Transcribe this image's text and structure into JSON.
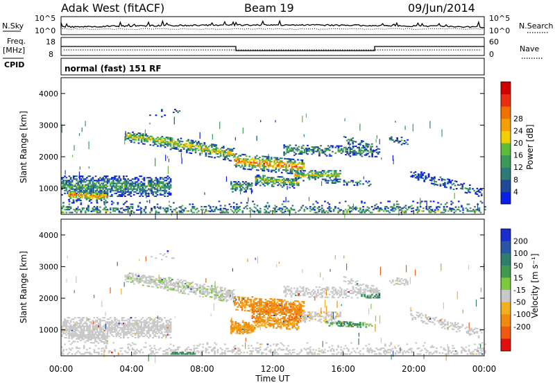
{
  "header": {
    "station": "Adak West (fitACF)",
    "beam": "Beam 19",
    "date": "09/Jun/2014"
  },
  "noise_panel": {
    "left_label": "N.Sky",
    "right_label": "N.Search",
    "left_ticks": [
      "10^5",
      "10^0"
    ],
    "right_ticks": [
      "10^5",
      "10^0"
    ]
  },
  "freq_panel": {
    "left_label_line1": "Freq.",
    "left_label_line2": "[MHz]",
    "left_label_line3": "CPID",
    "right_label": "Nave",
    "left_ticks": [
      18,
      8
    ],
    "right_ticks": [
      60,
      0
    ],
    "program": "normal (fast) 151 RF"
  },
  "chart_data": [
    {
      "type": "heatmap",
      "name": "power",
      "ylabel": "Slant Range [km]",
      "yticks": [
        1000,
        2000,
        3000,
        4000
      ],
      "ylim": [
        180,
        4500
      ],
      "xlim": [
        0,
        24
      ],
      "colorbar": {
        "label": "Power [dB]",
        "ticks": [
          4,
          8,
          12,
          16,
          20,
          24,
          28
        ],
        "colors": [
          "#0a1ee6",
          "#1e4a96",
          "#2d7a78",
          "#3a9a5a",
          "#5fbb3c",
          "#f0d000",
          "#f4a000",
          "#f07000",
          "#e83010",
          "#d00000"
        ]
      }
    },
    {
      "type": "heatmap",
      "name": "velocity",
      "ylabel": "Slant Range [km]",
      "yticks": [
        1000,
        2000,
        3000,
        4000
      ],
      "ylim": [
        180,
        4500
      ],
      "xlim": [
        0,
        24
      ],
      "xticks": [
        "00:00",
        "04:00",
        "08:00",
        "12:00",
        "16:00",
        "20:00",
        "00:00"
      ],
      "xlabel": "Time UT",
      "colorbar": {
        "label": "Velocity [m s⁻¹]",
        "ticks": [
          "200",
          "100",
          "50",
          "15",
          "-15",
          "-50",
          "-100",
          "-200"
        ],
        "colors": [
          "#1a2ccc",
          "#2a55a8",
          "#2f7d6a",
          "#3f9a50",
          "#7ec840",
          "#c8c8c8",
          "#f2b020",
          "#f08a10",
          "#ee5a10",
          "#e01010"
        ]
      }
    }
  ]
}
